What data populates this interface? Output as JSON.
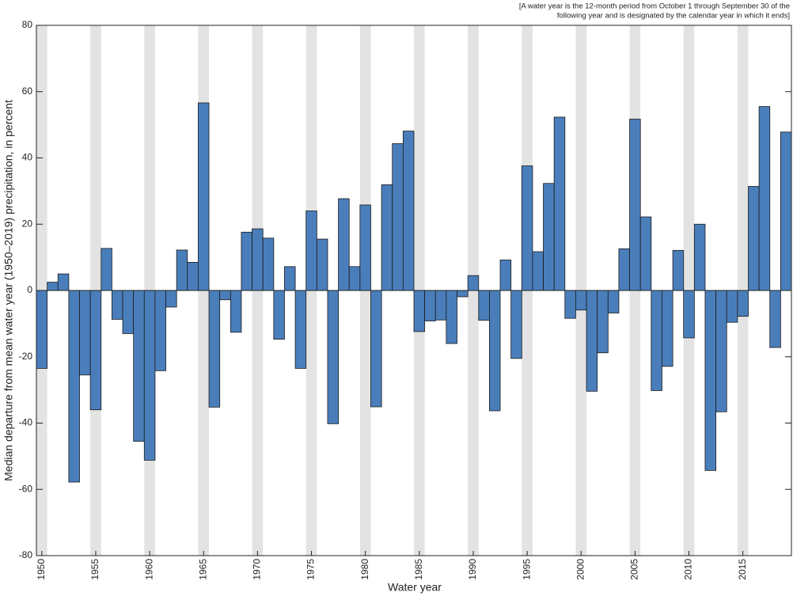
{
  "chart_data": {
    "type": "bar",
    "note": [
      "[A water year is the 12-month period from October 1 through September 30 of the",
      "following year and is designated by the calendar year in which it ends]"
    ],
    "xlabel": "Water year",
    "ylabel": "Median departure from mean water year (1950–2019) precipitation, in percent",
    "x": [
      1950,
      1951,
      1952,
      1953,
      1954,
      1955,
      1956,
      1957,
      1958,
      1959,
      1960,
      1961,
      1962,
      1963,
      1964,
      1965,
      1966,
      1967,
      1968,
      1969,
      1970,
      1971,
      1972,
      1973,
      1974,
      1975,
      1976,
      1977,
      1978,
      1979,
      1980,
      1981,
      1982,
      1983,
      1984,
      1985,
      1986,
      1987,
      1988,
      1989,
      1990,
      1991,
      1992,
      1993,
      1994,
      1995,
      1996,
      1997,
      1998,
      1999,
      2000,
      2001,
      2002,
      2003,
      2004,
      2005,
      2006,
      2007,
      2008,
      2009,
      2010,
      2011,
      2012,
      2013,
      2014,
      2015,
      2016,
      2017,
      2018,
      2019
    ],
    "values": [
      -23.5,
      2.5,
      5,
      -57.8,
      -25.5,
      -36,
      12.7,
      -8.7,
      -13,
      -45.5,
      -51.2,
      -24.2,
      -5,
      12.2,
      8.5,
      56.6,
      -35.2,
      -2.8,
      -12.6,
      17.6,
      18.6,
      15.8,
      -14.7,
      7.2,
      -23.5,
      24,
      15.5,
      -40.2,
      27.7,
      7.2,
      25.8,
      -35.1,
      31.9,
      44.3,
      48.1,
      -12.4,
      -9.2,
      -8.9,
      -16,
      -1.9,
      4.5,
      -9,
      -36.3,
      9.2,
      -20.5,
      37.6,
      11.7,
      32.3,
      52.3,
      -8.4,
      -5.9,
      -30.4,
      -18.8,
      -6.8,
      12.6,
      51.7,
      22.2,
      -30.2,
      -22.9,
      12.1,
      -14.3,
      20,
      -54.3,
      -36.6,
      -9.6,
      -7.8,
      31.4,
      55.5,
      -17.2,
      47.8
    ],
    "color": "#4a7ebb",
    "band_color": "#e3e3e3",
    "xlim": [
      1949.5,
      2019.5
    ],
    "xticks": [
      1950,
      1955,
      1960,
      1965,
      1970,
      1975,
      1980,
      1985,
      1990,
      1995,
      2000,
      2005,
      2010,
      2015
    ],
    "ylim": [
      -80,
      80
    ],
    "yticks": [
      -80,
      -60,
      -40,
      -20,
      0,
      20,
      40,
      60,
      80
    ]
  }
}
